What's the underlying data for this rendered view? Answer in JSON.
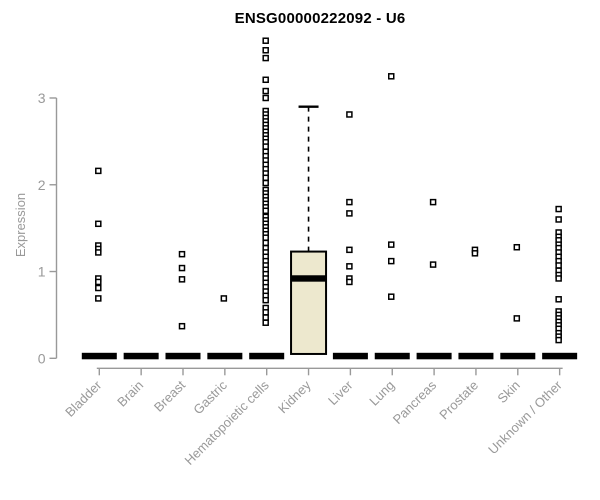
{
  "chart_data": {
    "type": "boxplot",
    "title": "ENSG00000222092 - U6",
    "ylabel": "Expression",
    "xlabel": "",
    "yticks": [
      0,
      1,
      2,
      3
    ],
    "ylim": [
      0,
      3.75
    ],
    "grid": false,
    "legend": "none",
    "categories": [
      "Bladder",
      "Brain",
      "Breast",
      "Gastric",
      "Hematopoietic cells",
      "Kidney",
      "Liver",
      "Lung",
      "Pancreas",
      "Prostate",
      "Skin",
      "Unknown / Other"
    ],
    "series": [
      {
        "category": "Bladder",
        "median": 0,
        "points": [
          2.16,
          1.55,
          1.3,
          1.26,
          1.22,
          0.92,
          0.88,
          0.81,
          0.69
        ]
      },
      {
        "category": "Brain",
        "median": 0,
        "points": []
      },
      {
        "category": "Breast",
        "median": 0,
        "points": [
          1.2,
          1.04,
          0.91,
          0.37
        ]
      },
      {
        "category": "Gastric",
        "median": 0,
        "points": [
          0.69
        ]
      },
      {
        "category": "Hematopoietic cells",
        "median": 0,
        "points": [
          3.66,
          3.55,
          3.46,
          3.21,
          3.08,
          3.0,
          2.85,
          2.81,
          2.77,
          2.73,
          2.69,
          2.65,
          2.61,
          2.57,
          2.53,
          2.49,
          2.44,
          2.38,
          2.33,
          2.28,
          2.23,
          2.18,
          2.13,
          2.08,
          2.02,
          1.94,
          1.9,
          1.86,
          1.82,
          1.78,
          1.74,
          1.7,
          1.63,
          1.59,
          1.55,
          1.51,
          1.47,
          1.43,
          1.39,
          1.33,
          1.27,
          1.22,
          1.17,
          1.12,
          1.07,
          1.02,
          0.97,
          0.92,
          0.87,
          0.82,
          0.77,
          0.72,
          0.67,
          0.58,
          0.53,
          0.47,
          0.41
        ]
      },
      {
        "category": "Kidney",
        "box": {
          "q1": 0.05,
          "median": 0.92,
          "q3": 1.23,
          "whisker_high": 2.9,
          "whisker_low": 0.05
        },
        "points": []
      },
      {
        "category": "Liver",
        "median": 0,
        "points": [
          2.81,
          1.8,
          1.67,
          1.25,
          1.06,
          0.92,
          0.88
        ]
      },
      {
        "category": "Lung",
        "median": 0,
        "points": [
          3.25,
          1.31,
          1.12,
          0.71
        ]
      },
      {
        "category": "Pancreas",
        "median": 0,
        "points": [
          1.8,
          1.08
        ]
      },
      {
        "category": "Prostate",
        "median": 0,
        "points": [
          1.25,
          1.21
        ]
      },
      {
        "category": "Skin",
        "median": 0,
        "points": [
          1.28,
          0.46
        ]
      },
      {
        "category": "Unknown / Other",
        "median": 0,
        "points": [
          1.72,
          1.6,
          1.45,
          1.4,
          1.36,
          1.31,
          1.27,
          1.22,
          1.17,
          1.12,
          1.07,
          1.01,
          0.96,
          0.92,
          0.68,
          0.54,
          0.5,
          0.46,
          0.42,
          0.38,
          0.34,
          0.29,
          0.25,
          0.21
        ]
      }
    ],
    "colors": {
      "box_fill": "#EDE8CE",
      "box_border": "#000000",
      "point_stroke": "#000000",
      "point_fill": "#FFFFFF",
      "median_bar": "#000000",
      "axis": "#999999",
      "tick_label": "#999999",
      "title": "#000000"
    }
  }
}
